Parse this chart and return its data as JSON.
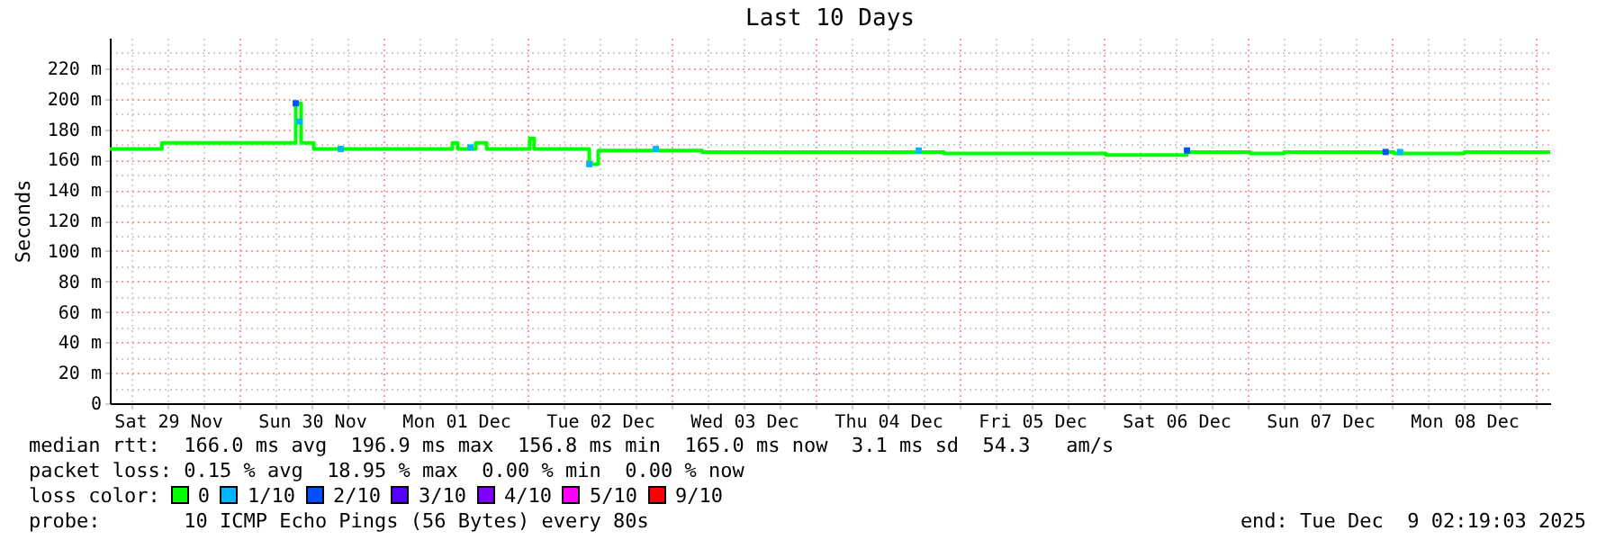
{
  "chart_data": {
    "type": "step",
    "title": "Last 10 Days",
    "ylabel": "Seconds",
    "legend_title": "loss color:",
    "legend": "bottom",
    "grid": true,
    "xlim": [
      "2025-11-29T02:19",
      "2025-12-09T02:19"
    ],
    "xticks": [
      {
        "value": "2025-11-29T06:00",
        "label": null
      },
      {
        "value": "2025-11-29T12:00",
        "label": "Sat 29 Nov"
      },
      {
        "value": "2025-11-29T18:00",
        "label": null
      },
      {
        "value": "2025-11-30T00:00",
        "label": null
      },
      {
        "value": "2025-11-30T06:00",
        "label": null
      },
      {
        "value": "2025-11-30T12:00",
        "label": "Sun 30 Nov"
      },
      {
        "value": "2025-11-30T18:00",
        "label": null
      },
      {
        "value": "2025-12-01T00:00",
        "label": null
      },
      {
        "value": "2025-12-01T06:00",
        "label": null
      },
      {
        "value": "2025-12-01T12:00",
        "label": "Mon 01 Dec"
      },
      {
        "value": "2025-12-01T18:00",
        "label": null
      },
      {
        "value": "2025-12-02T00:00",
        "label": null
      },
      {
        "value": "2025-12-02T06:00",
        "label": null
      },
      {
        "value": "2025-12-02T12:00",
        "label": "Tue 02 Dec"
      },
      {
        "value": "2025-12-02T18:00",
        "label": null
      },
      {
        "value": "2025-12-03T00:00",
        "label": null
      },
      {
        "value": "2025-12-03T06:00",
        "label": null
      },
      {
        "value": "2025-12-03T12:00",
        "label": "Wed 03 Dec"
      },
      {
        "value": "2025-12-03T18:00",
        "label": null
      },
      {
        "value": "2025-12-04T00:00",
        "label": null
      },
      {
        "value": "2025-12-04T06:00",
        "label": null
      },
      {
        "value": "2025-12-04T12:00",
        "label": "Thu 04 Dec"
      },
      {
        "value": "2025-12-04T18:00",
        "label": null
      },
      {
        "value": "2025-12-05T00:00",
        "label": null
      },
      {
        "value": "2025-12-05T06:00",
        "label": null
      },
      {
        "value": "2025-12-05T12:00",
        "label": "Fri 05 Dec"
      },
      {
        "value": "2025-12-05T18:00",
        "label": null
      },
      {
        "value": "2025-12-06T00:00",
        "label": null
      },
      {
        "value": "2025-12-06T06:00",
        "label": null
      },
      {
        "value": "2025-12-06T12:00",
        "label": "Sat 06 Dec"
      },
      {
        "value": "2025-12-06T18:00",
        "label": null
      },
      {
        "value": "2025-12-07T00:00",
        "label": null
      },
      {
        "value": "2025-12-07T06:00",
        "label": null
      },
      {
        "value": "2025-12-07T12:00",
        "label": "Sun 07 Dec"
      },
      {
        "value": "2025-12-07T18:00",
        "label": null
      },
      {
        "value": "2025-12-08T00:00",
        "label": null
      },
      {
        "value": "2025-12-08T06:00",
        "label": null
      },
      {
        "value": "2025-12-08T12:00",
        "label": "Mon 08 Dec"
      },
      {
        "value": "2025-12-08T18:00",
        "label": null
      },
      {
        "value": "2025-12-09T00:00",
        "label": null
      }
    ],
    "ylim": [
      0,
      240
    ],
    "yticks": [
      {
        "value": 0,
        "label": "0"
      },
      {
        "value": 10,
        "label": null
      },
      {
        "value": 20,
        "label": "20 m"
      },
      {
        "value": 30,
        "label": null
      },
      {
        "value": 40,
        "label": "40 m"
      },
      {
        "value": 50,
        "label": null
      },
      {
        "value": 60,
        "label": "60 m"
      },
      {
        "value": 70,
        "label": null
      },
      {
        "value": 80,
        "label": "80 m"
      },
      {
        "value": 90,
        "label": null
      },
      {
        "value": 100,
        "label": "100 m"
      },
      {
        "value": 110,
        "label": null
      },
      {
        "value": 120,
        "label": "120 m"
      },
      {
        "value": 130,
        "label": null
      },
      {
        "value": 140,
        "label": "140 m"
      },
      {
        "value": 150,
        "label": null
      },
      {
        "value": 160,
        "label": "160 m"
      },
      {
        "value": 170,
        "label": null
      },
      {
        "value": 180,
        "label": "180 m"
      },
      {
        "value": 190,
        "label": null
      },
      {
        "value": 200,
        "label": "200 m"
      },
      {
        "value": 210,
        "label": null
      },
      {
        "value": 220,
        "label": "220 m"
      },
      {
        "value": 230,
        "label": null
      }
    ],
    "series": [
      {
        "name": "0",
        "color": "#00ff00",
        "x": [
          "2025-11-29T02:19",
          "2025-11-29T11:00",
          "2025-11-30T09:18",
          "2025-11-30T10:12",
          "2025-11-30T12:18",
          "2025-12-01T11:24",
          "2025-12-01T12:18",
          "2025-12-01T15:18",
          "2025-12-01T17:06",
          "2025-12-02T00:18",
          "2025-12-02T01:00",
          "2025-12-02T10:12",
          "2025-12-02T11:42",
          "2025-12-03T05:00",
          "2025-12-04T21:18",
          "2025-12-06T00:18",
          "2025-12-06T13:48",
          "2025-12-07T00:18",
          "2025-12-07T06:00",
          "2025-12-08T00:18",
          "2025-12-08T12:00",
          "2025-12-09T02:19"
        ],
        "values": [
          167,
          171,
          197,
          171,
          167,
          171,
          167,
          171,
          167,
          174,
          167,
          157,
          166,
          165,
          164,
          163,
          165,
          164,
          165,
          164,
          165,
          165
        ]
      },
      {
        "name": "1/10",
        "type": "scatter",
        "marker": "square",
        "color": "#00b4ff",
        "x": [
          "2025-11-30T09:54",
          "2025-11-30T16:48",
          "2025-12-01T14:24",
          "2025-12-02T10:12",
          "2025-12-02T21:18",
          "2025-12-04T17:06",
          "2025-12-08T01:18"
        ],
        "values": [
          185,
          167,
          168,
          157,
          167,
          166,
          165
        ]
      },
      {
        "name": "2/10",
        "type": "scatter",
        "marker": "square",
        "color": "#0050ff",
        "x": [
          "2025-11-30T09:18",
          "2025-12-06T13:48",
          "2025-12-07T22:54"
        ],
        "values": [
          197,
          166,
          165
        ]
      },
      {
        "name": "3/10",
        "type": "scatter",
        "marker": "square",
        "color": "#5500ff"
      },
      {
        "name": "4/10",
        "type": "scatter",
        "marker": "square",
        "color": "#8000ff"
      },
      {
        "name": "5/10",
        "type": "scatter",
        "marker": "square",
        "color": "#ff00ff"
      },
      {
        "name": "9/10",
        "type": "scatter",
        "marker": "square",
        "color": "#ff0000"
      }
    ],
    "annotations": [
      "median rtt:  166.0 ms avg  196.9 ms max  156.8 ms min  165.0 ms now  3.1 ms sd  54.3   am/s",
      "packet loss: 0.15 % avg  18.95 % max  0.00 % min  0.00 % now",
      "probe:       10 ICMP Echo Pings (56 Bytes) every 80s",
      "end: Tue Dec  9 02:19:03 2025"
    ]
  }
}
